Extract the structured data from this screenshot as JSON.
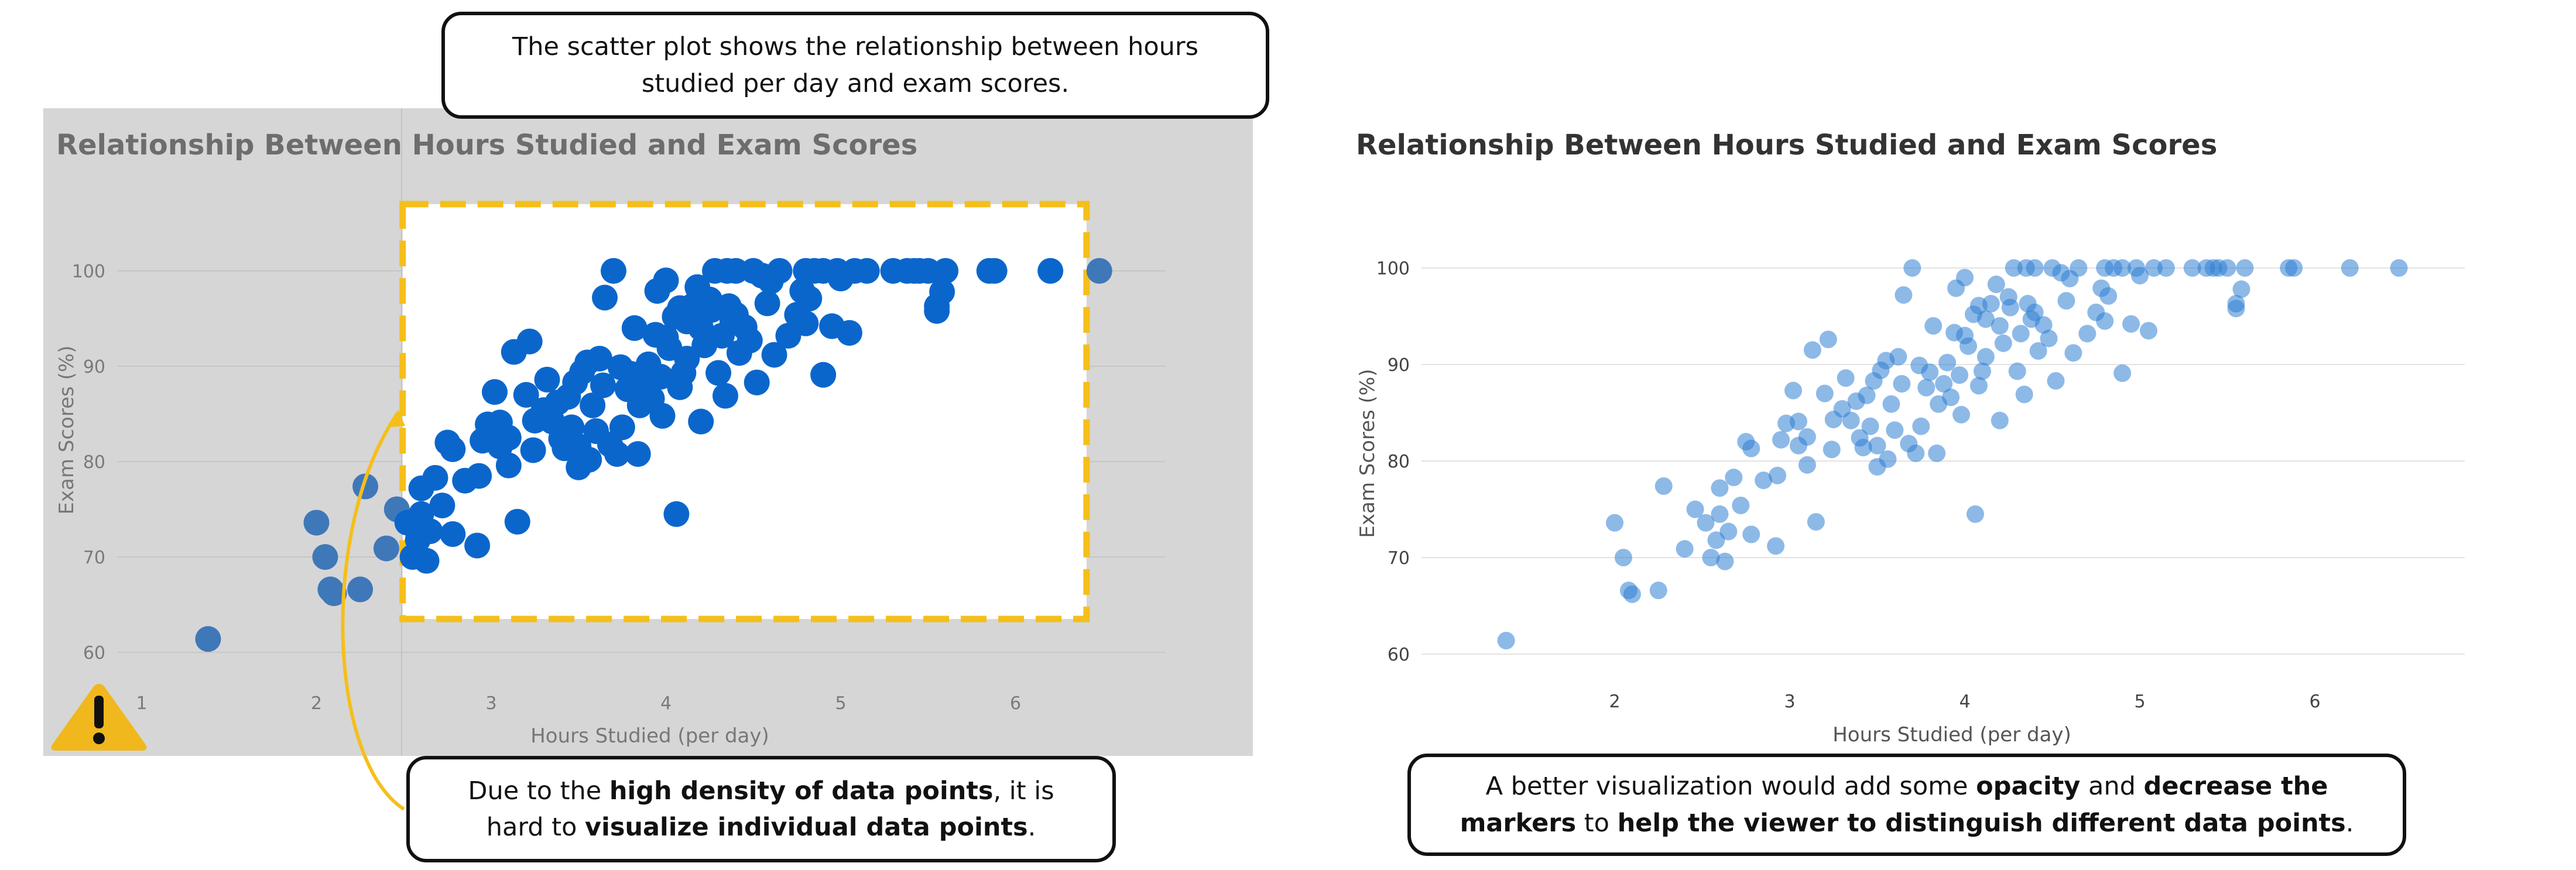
{
  "callouts": {
    "top": {
      "line1": "The scatter plot shows the relationship between hours",
      "line2": "studied per day and exam scores."
    },
    "bottom": {
      "l1_pre": "Due to the ",
      "l1_bold": "high density of data points",
      "l1_post": ", it is",
      "l2_pre": "hard to ",
      "l2_bold": "visualize individual data points",
      "l2_post": "."
    },
    "right": {
      "l1_pre": "A better visualization would add some ",
      "l1_b1": "opacity",
      "l1_mid": " and ",
      "l1_b2": "decrease the",
      "l2_b1": "markers",
      "l2_mid": " to ",
      "l2_b2": "help the viewer to distinguish different data points",
      "l2_post": "."
    }
  },
  "colors": {
    "marker_dense": "#0b66cc",
    "marker_light": "#2f7fd3",
    "highlight_box": "#f5bf1b",
    "overlay": "#d6d6d6",
    "warning": "#f0b81d"
  },
  "icons": {
    "warning": "warning-triangle-icon"
  },
  "chart_data": [
    {
      "type": "scatter",
      "title": "Relationship Between Hours Studied and Exam Scores",
      "xlabel": "Hours Studied (per day)",
      "ylabel": "Exam Scores (%)",
      "xlim": [
        1,
        6.8
      ],
      "ylim": [
        57,
        105
      ],
      "xticks": [
        1,
        2,
        3,
        4,
        5,
        6
      ],
      "yticks": [
        60,
        70,
        80,
        90,
        100
      ],
      "grid": "horizontal",
      "marker": "large opaque",
      "highlight_region": {
        "x": [
          2.5,
          6.4
        ],
        "y": [
          63.5,
          107
        ]
      },
      "points": [
        [
          1.38,
          61.4
        ],
        [
          2.0,
          73.6
        ],
        [
          2.05,
          70.0
        ],
        [
          2.08,
          66.6
        ],
        [
          2.1,
          66.2
        ],
        [
          2.25,
          66.6
        ],
        [
          2.28,
          77.4
        ],
        [
          2.4,
          70.9
        ],
        [
          2.46,
          75.0
        ],
        [
          2.52,
          73.6
        ],
        [
          2.55,
          70.0
        ],
        [
          2.58,
          71.8
        ],
        [
          2.6,
          74.5
        ],
        [
          2.6,
          77.2
        ],
        [
          2.63,
          69.6
        ],
        [
          2.65,
          72.7
        ],
        [
          2.68,
          78.3
        ],
        [
          2.72,
          75.4
        ],
        [
          2.75,
          82.0
        ],
        [
          2.78,
          72.4
        ],
        [
          2.78,
          81.3
        ],
        [
          2.85,
          78.0
        ],
        [
          2.92,
          71.2
        ],
        [
          2.93,
          78.5
        ],
        [
          2.95,
          82.2
        ],
        [
          2.98,
          83.9
        ],
        [
          3.02,
          87.3
        ],
        [
          3.05,
          81.6
        ],
        [
          3.05,
          84.1
        ],
        [
          3.1,
          79.6
        ],
        [
          3.1,
          82.5
        ],
        [
          3.13,
          91.5
        ],
        [
          3.15,
          73.7
        ],
        [
          3.2,
          87.0
        ],
        [
          3.22,
          92.6
        ],
        [
          3.24,
          81.2
        ],
        [
          3.25,
          84.3
        ],
        [
          3.3,
          85.4
        ],
        [
          3.32,
          88.6
        ],
        [
          3.35,
          84.2
        ],
        [
          3.38,
          86.2
        ],
        [
          3.4,
          82.4
        ],
        [
          3.42,
          81.4
        ],
        [
          3.44,
          86.8
        ],
        [
          3.46,
          83.6
        ],
        [
          3.48,
          88.3
        ],
        [
          3.5,
          79.4
        ],
        [
          3.5,
          81.6
        ],
        [
          3.52,
          89.4
        ],
        [
          3.55,
          90.4
        ],
        [
          3.56,
          80.2
        ],
        [
          3.58,
          85.9
        ],
        [
          3.6,
          83.2
        ],
        [
          3.62,
          90.8
        ],
        [
          3.64,
          88.0
        ],
        [
          3.65,
          97.2
        ],
        [
          3.68,
          81.8
        ],
        [
          3.7,
          100.0
        ],
        [
          3.72,
          80.8
        ],
        [
          3.74,
          89.9
        ],
        [
          3.75,
          83.6
        ],
        [
          3.78,
          87.6
        ],
        [
          3.8,
          89.2
        ],
        [
          3.82,
          94.0
        ],
        [
          3.84,
          80.8
        ],
        [
          3.85,
          85.9
        ],
        [
          3.88,
          88.0
        ],
        [
          3.9,
          90.2
        ],
        [
          3.92,
          86.6
        ],
        [
          3.94,
          93.3
        ],
        [
          3.95,
          97.9
        ],
        [
          3.97,
          88.9
        ],
        [
          3.98,
          84.8
        ],
        [
          4.0,
          93.0
        ],
        [
          4.0,
          99.0
        ],
        [
          4.02,
          91.9
        ],
        [
          4.05,
          95.2
        ],
        [
          4.06,
          74.5
        ],
        [
          4.08,
          96.1
        ],
        [
          4.08,
          87.8
        ],
        [
          4.1,
          89.3
        ],
        [
          4.12,
          90.8
        ],
        [
          4.12,
          94.7
        ],
        [
          4.15,
          96.3
        ],
        [
          4.18,
          98.3
        ],
        [
          4.2,
          94.0
        ],
        [
          4.2,
          84.2
        ],
        [
          4.22,
          92.2
        ],
        [
          4.25,
          97.0
        ],
        [
          4.26,
          95.9
        ],
        [
          4.28,
          100.0
        ],
        [
          4.3,
          89.3
        ],
        [
          4.32,
          93.2
        ],
        [
          4.34,
          86.9
        ],
        [
          4.35,
          100.0
        ],
        [
          4.36,
          96.3
        ],
        [
          4.38,
          94.7
        ],
        [
          4.4,
          95.4
        ],
        [
          4.4,
          100.0
        ],
        [
          4.42,
          91.4
        ],
        [
          4.45,
          94.1
        ],
        [
          4.48,
          92.7
        ],
        [
          4.5,
          100.0
        ],
        [
          4.52,
          88.3
        ],
        [
          4.55,
          99.5
        ],
        [
          4.58,
          96.6
        ],
        [
          4.6,
          98.9
        ],
        [
          4.62,
          91.2
        ],
        [
          4.65,
          100.0
        ],
        [
          4.7,
          93.2
        ],
        [
          4.75,
          95.4
        ],
        [
          4.78,
          97.9
        ],
        [
          4.8,
          100.0
        ],
        [
          4.8,
          94.5
        ],
        [
          4.82,
          97.1
        ],
        [
          4.85,
          100.0
        ],
        [
          4.9,
          100.0
        ],
        [
          4.9,
          89.1
        ],
        [
          4.95,
          94.2
        ],
        [
          4.98,
          100.0
        ],
        [
          5.0,
          99.2
        ],
        [
          5.05,
          93.5
        ],
        [
          5.08,
          100.0
        ],
        [
          5.15,
          100.0
        ],
        [
          5.3,
          100.0
        ],
        [
          5.38,
          100.0
        ],
        [
          5.42,
          100.0
        ],
        [
          5.45,
          100.0
        ],
        [
          5.5,
          100.0
        ],
        [
          5.55,
          96.3
        ],
        [
          5.55,
          95.8
        ],
        [
          5.58,
          97.8
        ],
        [
          5.6,
          100.0
        ],
        [
          5.85,
          100.0
        ],
        [
          5.88,
          100.0
        ],
        [
          6.2,
          100.0
        ],
        [
          6.48,
          100.0
        ]
      ]
    },
    {
      "type": "scatter",
      "title": "Relationship Between Hours Studied and Exam Scores",
      "xlabel": "Hours Studied (per day)",
      "ylabel": "Exam Scores (%)",
      "xlim": [
        1.2,
        6.85
      ],
      "ylim": [
        57,
        104
      ],
      "xticks": [
        2,
        3,
        4,
        5,
        6
      ],
      "yticks": [
        60,
        70,
        80,
        90,
        100
      ],
      "grid": "horizontal",
      "marker": "small translucent",
      "opacity": 0.55,
      "points_ref": "same as chart 1"
    }
  ]
}
